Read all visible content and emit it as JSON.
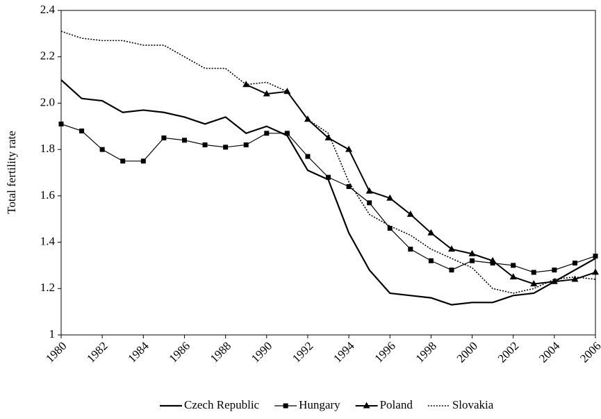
{
  "chart_data": {
    "type": "line",
    "ylabel": "Total fertility rate",
    "x": [
      1980,
      1981,
      1982,
      1983,
      1984,
      1985,
      1986,
      1987,
      1988,
      1989,
      1990,
      1991,
      1992,
      1993,
      1994,
      1995,
      1996,
      1997,
      1998,
      1999,
      2000,
      2001,
      2002,
      2003,
      2004,
      2005,
      2006
    ],
    "xlim": [
      1980,
      2006
    ],
    "xticks": [
      1980,
      1982,
      1984,
      1986,
      1988,
      1990,
      1992,
      1994,
      1996,
      1998,
      2000,
      2002,
      2004,
      2006
    ],
    "ylim": [
      1,
      2.4
    ],
    "yticks": [
      1,
      1.2,
      1.4,
      1.6,
      1.8,
      {
        "value": 2,
        "label": "2.0"
      },
      2.2,
      2.4
    ],
    "grid": false,
    "legend": "bottom",
    "series": [
      {
        "name": "Czech Republic",
        "color": "#000000",
        "width": 2.2,
        "marker": "none",
        "dash": "solid",
        "values": [
          2.1,
          2.02,
          2.01,
          1.96,
          1.97,
          1.96,
          1.94,
          1.91,
          1.94,
          1.87,
          1.9,
          1.86,
          1.71,
          1.67,
          1.44,
          1.28,
          1.18,
          1.17,
          1.16,
          1.13,
          1.14,
          1.14,
          1.17,
          1.18,
          1.23,
          1.28,
          1.33
        ]
      },
      {
        "name": "Hungary",
        "color": "#000000",
        "width": 1.2,
        "marker": "square",
        "dash": "solid",
        "values": [
          1.91,
          1.88,
          1.8,
          1.75,
          1.75,
          1.85,
          1.84,
          1.82,
          1.81,
          1.82,
          1.87,
          1.87,
          1.77,
          1.68,
          1.64,
          1.57,
          1.46,
          1.37,
          1.32,
          1.28,
          1.32,
          1.31,
          1.3,
          1.27,
          1.28,
          1.31,
          1.34
        ]
      },
      {
        "name": "Poland",
        "color": "#000000",
        "width": 2,
        "marker": "triangle",
        "dash": "solid",
        "values": [
          null,
          null,
          null,
          null,
          null,
          null,
          null,
          null,
          null,
          2.08,
          2.04,
          2.05,
          1.93,
          1.85,
          1.8,
          1.62,
          1.59,
          1.52,
          1.44,
          1.37,
          1.35,
          1.32,
          1.25,
          1.22,
          1.23,
          1.24,
          1.27
        ]
      },
      {
        "name": "Slovakia",
        "color": "#000000",
        "width": 1.6,
        "marker": "none",
        "dash": "dotted",
        "values": [
          2.31,
          2.28,
          2.27,
          2.27,
          2.25,
          2.25,
          2.2,
          2.15,
          2.15,
          2.08,
          2.09,
          2.05,
          1.93,
          1.87,
          1.66,
          1.52,
          1.47,
          1.43,
          1.37,
          1.33,
          1.29,
          1.2,
          1.18,
          1.2,
          1.24,
          1.25,
          1.24
        ]
      }
    ]
  }
}
